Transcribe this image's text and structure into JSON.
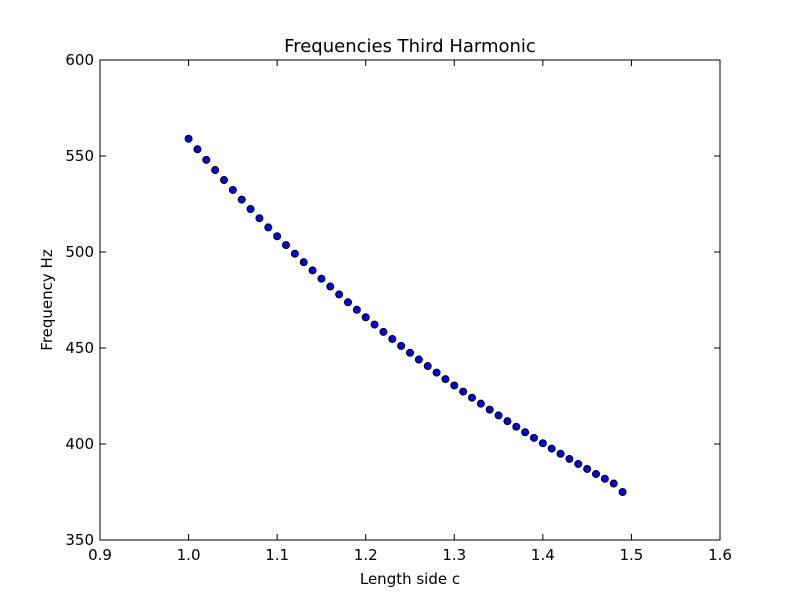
{
  "chart_data": {
    "type": "scatter",
    "title": "Frequencies Third Harmonic",
    "xlabel": "Length side c",
    "ylabel": "Frequency Hz",
    "xlim": [
      0.9,
      1.6
    ],
    "ylim": [
      350,
      600
    ],
    "xticks": [
      "0.9",
      "1.0",
      "1.1",
      "1.2",
      "1.3",
      "1.4",
      "1.5",
      "1.6"
    ],
    "yticks": [
      "350",
      "400",
      "450",
      "500",
      "550",
      "600"
    ],
    "grid": false,
    "marker": "circle",
    "marker_color": "#0000ff",
    "marker_edge_color": "#000000",
    "series": [
      {
        "x": [
          1.0,
          1.01,
          1.02,
          1.03,
          1.04,
          1.05,
          1.06,
          1.07,
          1.08,
          1.09,
          1.1,
          1.11,
          1.12,
          1.13,
          1.14,
          1.15,
          1.16,
          1.17,
          1.18,
          1.19,
          1.2,
          1.21,
          1.22,
          1.23,
          1.24,
          1.25,
          1.26,
          1.27,
          1.28,
          1.29,
          1.3,
          1.31,
          1.32,
          1.33,
          1.34,
          1.35,
          1.36,
          1.37,
          1.38,
          1.39,
          1.4,
          1.41,
          1.42,
          1.43,
          1.44,
          1.45,
          1.46,
          1.47,
          1.48,
          1.49
        ],
        "y": [
          559.0,
          553.5,
          548.0,
          542.7,
          537.5,
          532.3,
          527.3,
          522.4,
          517.6,
          512.8,
          508.2,
          503.6,
          499.1,
          494.7,
          490.4,
          486.1,
          482.0,
          477.9,
          473.8,
          469.9,
          466.0,
          462.2,
          458.4,
          454.7,
          451.1,
          447.5,
          444.0,
          440.6,
          437.2,
          433.8,
          430.5,
          427.3,
          424.1,
          421.0,
          417.9,
          414.9,
          411.9,
          409.0,
          406.1,
          403.2,
          400.4,
          397.6,
          394.9,
          392.2,
          389.6,
          387.0,
          384.4,
          381.9,
          379.4,
          375.0
        ]
      }
    ]
  }
}
